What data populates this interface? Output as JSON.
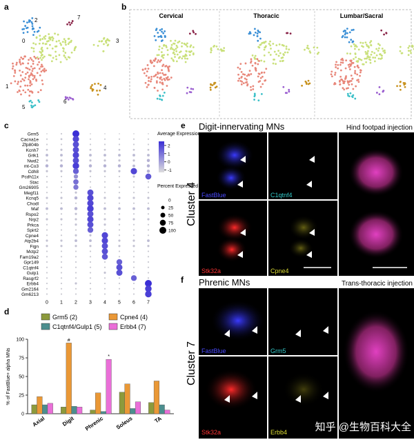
{
  "panels": {
    "a": "a",
    "b": "b",
    "c": "c",
    "d": "d",
    "e": "e",
    "f": "f"
  },
  "umap": {
    "clusters": [
      "0",
      "1",
      "2",
      "3",
      "4",
      "5",
      "6",
      "7"
    ],
    "regions": [
      "Cervical",
      "Thoracic",
      "Lumbar/Sacral"
    ]
  },
  "chart_data": [
    {
      "type": "dot-plot",
      "categories": [
        "Grm5",
        "Cacna1e",
        "Zfp804b",
        "Kcnh7",
        "Grik1",
        "Nwd2",
        "mt-Co3",
        "Cdh8",
        "Pcdh11x",
        "Stac",
        "Gm26905",
        "Megf11",
        "Kcnq5",
        "Chodl",
        "Maf",
        "Rspo2",
        "Nrp2",
        "Prkca",
        "Spirt2",
        "Cpne4",
        "Atp2b4",
        "Fign",
        "Mctp2",
        "Fam19a2",
        "Gpr149",
        "C1qtnf4",
        "Gulp1",
        "Rasgrf2",
        "Erbb4",
        "Gm2164",
        "Gm6213"
      ],
      "x": [
        "0",
        "1",
        "2",
        "3",
        "4",
        "5",
        "6",
        "7"
      ],
      "values": [
        [
          3,
          5,
          100,
          3,
          3,
          3,
          3,
          3
        ],
        [
          5,
          8,
          85,
          5,
          5,
          5,
          5,
          5
        ],
        [
          5,
          5,
          80,
          5,
          5,
          5,
          5,
          5
        ],
        [
          8,
          10,
          80,
          8,
          8,
          8,
          8,
          8
        ],
        [
          15,
          15,
          85,
          15,
          15,
          15,
          15,
          15
        ],
        [
          10,
          10,
          80,
          10,
          10,
          10,
          10,
          20
        ],
        [
          20,
          20,
          90,
          20,
          20,
          20,
          15,
          20
        ],
        [
          10,
          10,
          70,
          10,
          10,
          10,
          85,
          20
        ],
        [
          5,
          5,
          40,
          5,
          5,
          5,
          10,
          75
        ],
        [
          5,
          5,
          60,
          5,
          5,
          5,
          5,
          5
        ],
        [
          5,
          5,
          55,
          5,
          5,
          5,
          5,
          5
        ],
        [
          5,
          5,
          10,
          80,
          5,
          5,
          5,
          5
        ],
        [
          10,
          10,
          20,
          85,
          10,
          10,
          10,
          10
        ],
        [
          5,
          5,
          5,
          85,
          5,
          5,
          5,
          5
        ],
        [
          15,
          15,
          20,
          90,
          15,
          15,
          15,
          15
        ],
        [
          5,
          5,
          10,
          80,
          5,
          5,
          5,
          5
        ],
        [
          10,
          10,
          10,
          85,
          10,
          10,
          10,
          10
        ],
        [
          5,
          5,
          10,
          80,
          10,
          5,
          5,
          5
        ],
        [
          5,
          5,
          5,
          70,
          5,
          5,
          5,
          5
        ],
        [
          5,
          5,
          10,
          10,
          85,
          5,
          5,
          5
        ],
        [
          10,
          10,
          15,
          15,
          85,
          10,
          10,
          15
        ],
        [
          10,
          10,
          10,
          10,
          80,
          10,
          10,
          10
        ],
        [
          5,
          5,
          5,
          5,
          80,
          5,
          5,
          5
        ],
        [
          5,
          5,
          5,
          5,
          75,
          5,
          5,
          5
        ],
        [
          5,
          5,
          5,
          5,
          5,
          70,
          5,
          5
        ],
        [
          5,
          5,
          5,
          5,
          5,
          80,
          5,
          5
        ],
        [
          5,
          5,
          5,
          5,
          10,
          80,
          5,
          5
        ],
        [
          5,
          5,
          5,
          5,
          5,
          5,
          70,
          5
        ],
        [
          5,
          5,
          10,
          5,
          5,
          5,
          5,
          100
        ],
        [
          5,
          5,
          5,
          5,
          5,
          5,
          5,
          90
        ],
        [
          5,
          5,
          5,
          5,
          5,
          5,
          5,
          90
        ]
      ],
      "color": "#3b2fd6",
      "color_title": "Average Expression",
      "color_ticks": [
        2,
        1,
        0,
        -1
      ],
      "color_lim": [
        -1.3,
        2.5
      ],
      "size_title": "Percent Expressed",
      "size_ticks": [
        0,
        25,
        50,
        75,
        100
      ]
    },
    {
      "type": "bar",
      "ylabel": "% of FastBlue+ alpha MNs",
      "categories": [
        "Axial",
        "Digit",
        "Phrenic",
        "Soleus",
        "TA"
      ],
      "series": [
        {
          "name": "Grm5 (2)",
          "color": "#8c9a3c",
          "values": [
            12,
            9,
            5,
            29,
            15
          ]
        },
        {
          "name": "Cpne4 (4)",
          "color": "#ea9836",
          "values": [
            23,
            95,
            28,
            40,
            44
          ]
        },
        {
          "name": "C1qtnf4/Gulp1 (5)",
          "color": "#4c8e8e",
          "values": [
            12,
            10,
            3,
            7,
            12
          ]
        },
        {
          "name": "Erbb4 (7)",
          "color": "#ea6fd8",
          "values": [
            14,
            9,
            73,
            16,
            5
          ]
        }
      ],
      "annotations": [
        "#",
        "*"
      ],
      "ylim": [
        0,
        100
      ],
      "yticks": [
        0,
        25,
        50,
        75,
        100
      ]
    }
  ],
  "panel_e": {
    "title": "Digit-innervating MNs",
    "subtitle": "Hind footpad injection",
    "cluster": "Cluster 4",
    "channels": [
      "FastBlue",
      "C1qtnf4",
      "Stk32a",
      "Cpne4"
    ]
  },
  "panel_f": {
    "title": "Phrenic MNs",
    "subtitle": "Trans-thoracic injection",
    "cluster": "Cluster 7",
    "channels": [
      "FastBlue",
      "Grm5",
      "Stk32a",
      "Erbb4"
    ]
  },
  "watermark": "知乎 @生物百科大全"
}
